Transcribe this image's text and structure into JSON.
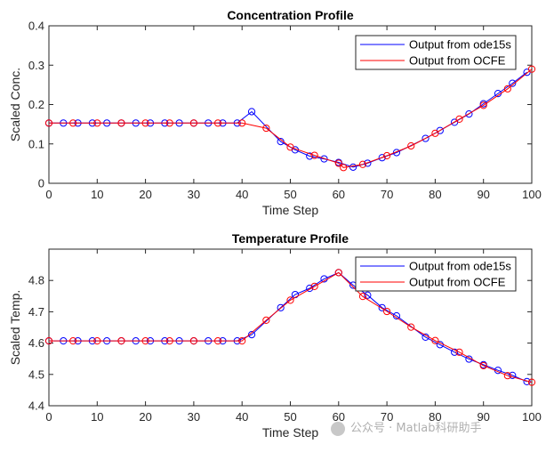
{
  "chart_data": [
    {
      "type": "line",
      "title": "Concentration Profile",
      "xlabel": "Time Step",
      "ylabel": "Scaled Conc.",
      "xlim": [
        0,
        100
      ],
      "ylim": [
        0,
        0.4
      ],
      "xticks": [
        0,
        10,
        20,
        30,
        40,
        50,
        60,
        70,
        80,
        90,
        100
      ],
      "yticks": [
        0,
        0.1,
        0.2,
        0.3,
        0.4
      ],
      "xtick_labels": [
        "0",
        "10",
        "20",
        "30",
        "40",
        "50",
        "60",
        "70",
        "80",
        "90",
        "100"
      ],
      "ytick_labels": [
        "0",
        "0.1",
        "0.2",
        "0.3",
        "0.4"
      ],
      "legend_position": "top-right",
      "series": [
        {
          "name": "Output from ode15s",
          "color": "#0000ff",
          "marker": "circle",
          "x": [
            0,
            3,
            6,
            9,
            12,
            15,
            18,
            21,
            24,
            27,
            30,
            33,
            36,
            39,
            42,
            48,
            51,
            54,
            57,
            60,
            63,
            66,
            69,
            72,
            78,
            81,
            84,
            87,
            90,
            93,
            96,
            99
          ],
          "y": [
            0.153,
            0.153,
            0.153,
            0.153,
            0.153,
            0.153,
            0.153,
            0.153,
            0.153,
            0.153,
            0.153,
            0.153,
            0.153,
            0.153,
            0.182,
            0.106,
            0.085,
            0.069,
            0.062,
            0.053,
            0.041,
            0.051,
            0.065,
            0.078,
            0.114,
            0.134,
            0.155,
            0.176,
            0.202,
            0.228,
            0.254,
            0.282
          ]
        },
        {
          "name": "Output from OCFE",
          "color": "#ff0000",
          "marker": "circle",
          "x": [
            0,
            5,
            10,
            15,
            20,
            25,
            30,
            35,
            40,
            45,
            50,
            55,
            60,
            61,
            65,
            70,
            75,
            80,
            85,
            90,
            95,
            100
          ],
          "y": [
            0.153,
            0.153,
            0.153,
            0.153,
            0.153,
            0.153,
            0.153,
            0.153,
            0.153,
            0.14,
            0.092,
            0.071,
            0.051,
            0.04,
            0.048,
            0.07,
            0.095,
            0.127,
            0.163,
            0.198,
            0.24,
            0.29
          ]
        }
      ]
    },
    {
      "type": "line",
      "title": "Temperature Profile",
      "xlabel": "Time Step",
      "ylabel": "Scaled Temp.",
      "xlim": [
        0,
        100
      ],
      "ylim": [
        4.4,
        4.9
      ],
      "xticks": [
        0,
        10,
        20,
        30,
        40,
        50,
        60,
        70,
        80,
        90,
        100
      ],
      "yticks": [
        4.4,
        4.5,
        4.6,
        4.7,
        4.8
      ],
      "xtick_labels": [
        "0",
        "10",
        "20",
        "30",
        "40",
        "50",
        "60",
        "70",
        "80",
        "90",
        "100"
      ],
      "ytick_labels": [
        "4.4",
        "4.5",
        "4.6",
        "4.7",
        "4.8"
      ],
      "legend_position": "top-right",
      "series": [
        {
          "name": "Output from ode15s",
          "color": "#0000ff",
          "marker": "circle",
          "x": [
            0,
            3,
            6,
            9,
            12,
            15,
            18,
            21,
            24,
            27,
            30,
            33,
            36,
            39,
            42,
            48,
            51,
            54,
            57,
            60,
            63,
            66,
            69,
            72,
            78,
            81,
            84,
            87,
            90,
            93,
            96,
            99
          ],
          "y": [
            4.607,
            4.607,
            4.607,
            4.607,
            4.607,
            4.607,
            4.607,
            4.607,
            4.607,
            4.607,
            4.607,
            4.607,
            4.607,
            4.607,
            4.627,
            4.713,
            4.755,
            4.775,
            4.805,
            4.825,
            4.785,
            4.753,
            4.713,
            4.687,
            4.619,
            4.595,
            4.571,
            4.549,
            4.531,
            4.513,
            4.497,
            4.477
          ]
        },
        {
          "name": "Output from OCFE",
          "color": "#ff0000",
          "marker": "circle",
          "x": [
            0,
            5,
            10,
            15,
            20,
            25,
            30,
            35,
            40,
            45,
            50,
            55,
            60,
            65,
            70,
            75,
            80,
            85,
            90,
            95,
            100
          ],
          "y": [
            4.607,
            4.607,
            4.607,
            4.607,
            4.607,
            4.607,
            4.607,
            4.607,
            4.607,
            4.673,
            4.737,
            4.781,
            4.825,
            4.749,
            4.701,
            4.651,
            4.608,
            4.571,
            4.528,
            4.496,
            4.475
          ]
        }
      ]
    }
  ],
  "watermark": {
    "text": "公众号 · Matlab科研助手"
  }
}
